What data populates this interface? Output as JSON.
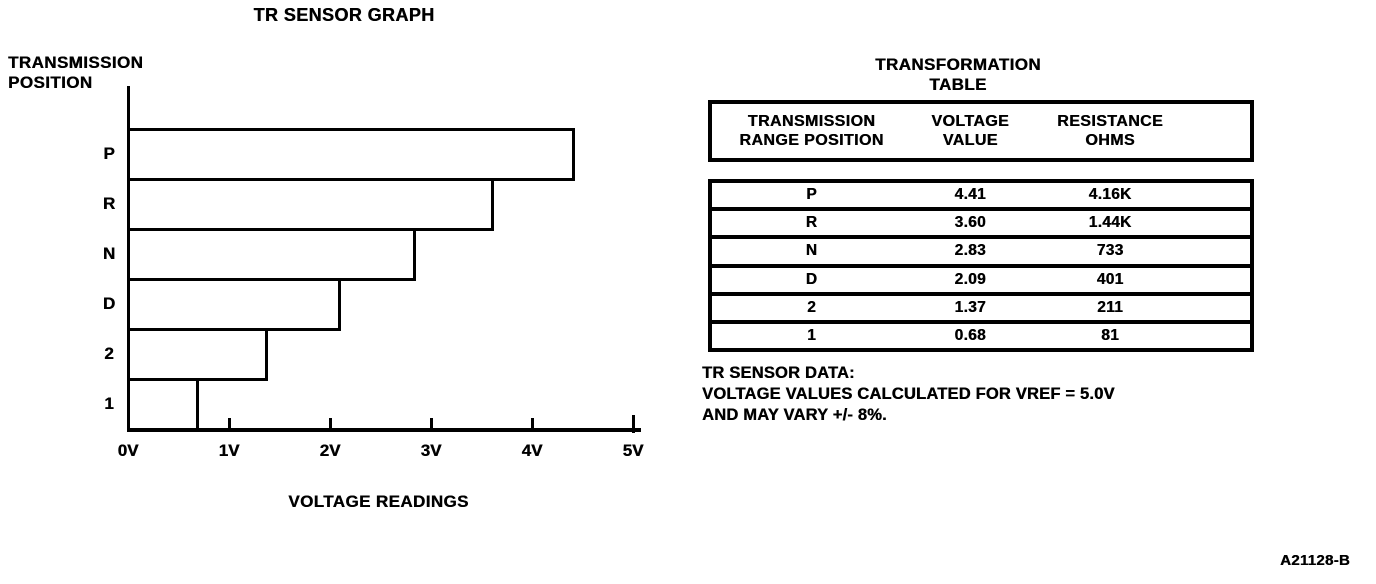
{
  "figure": {
    "graph": {
      "title": "TR SENSOR GRAPH",
      "y_axis_label": [
        "TRANSMISSION",
        "POSITION"
      ],
      "x_axis_caption": "VOLTAGE READINGS",
      "x_tick_labels": [
        "0V",
        "1V",
        "2V",
        "3V",
        "4V",
        "5V"
      ],
      "bars": [
        {
          "label": "P",
          "voltage": 4.41
        },
        {
          "label": "R",
          "voltage": 3.6
        },
        {
          "label": "N",
          "voltage": 2.83
        },
        {
          "label": "D",
          "voltage": 2.09
        },
        {
          "label": "2",
          "voltage": 1.37
        },
        {
          "label": "1",
          "voltage": 0.68
        }
      ]
    },
    "table": {
      "title": [
        "TRANSFORMATION",
        "TABLE"
      ],
      "headers": [
        [
          "TRANSMISSION",
          "RANGE POSITION"
        ],
        [
          "VOLTAGE",
          "VALUE"
        ],
        [
          "RESISTANCE",
          "OHMS"
        ]
      ],
      "rows": [
        [
          "P",
          "4.41",
          "4.16K"
        ],
        [
          "R",
          "3.60",
          "1.44K"
        ],
        [
          "N",
          "2.83",
          "733"
        ],
        [
          "D",
          "2.09",
          "401"
        ],
        [
          "2",
          "1.37",
          "211"
        ],
        [
          "1",
          "0.68",
          "81"
        ]
      ]
    },
    "note": [
      "TR SENSOR DATA:",
      "VOLTAGE VALUES CALCULATED FOR VREF = 5.0V",
      "AND MAY VARY +/- 8%."
    ],
    "figure_id": "A21128-B",
    "colors": {
      "ink": "#000000",
      "paper": "#ffffff"
    }
  },
  "chart_data": [
    {
      "type": "bar",
      "orientation": "horizontal",
      "title": "TR SENSOR GRAPH",
      "categories": [
        "P",
        "R",
        "N",
        "D",
        "2",
        "1"
      ],
      "values": [
        4.41,
        3.6,
        2.83,
        2.09,
        1.37,
        0.68
      ],
      "xlabel": "VOLTAGE READINGS",
      "ylabel": "TRANSMISSION POSITION",
      "xlim": [
        0,
        5
      ],
      "xtick_labels": [
        "0V",
        "1V",
        "2V",
        "3V",
        "4V",
        "5V"
      ],
      "grid": false,
      "legend": false,
      "bar_fill": "none",
      "bar_outline": "#000000"
    },
    {
      "type": "table",
      "title": "TRANSFORMATION TABLE",
      "columns": [
        "TRANSMISSION RANGE POSITION",
        "VOLTAGE VALUE",
        "RESISTANCE OHMS"
      ],
      "rows": [
        [
          "P",
          "4.41",
          "4.16K"
        ],
        [
          "R",
          "3.60",
          "1.44K"
        ],
        [
          "N",
          "2.83",
          "733"
        ],
        [
          "D",
          "2.09",
          "401"
        ],
        [
          "2",
          "1.37",
          "211"
        ],
        [
          "1",
          "0.68",
          "81"
        ]
      ],
      "footnote": "TR SENSOR DATA: VOLTAGE VALUES CALCULATED FOR VREF = 5.0V AND MAY VARY +/- 8%."
    }
  ]
}
